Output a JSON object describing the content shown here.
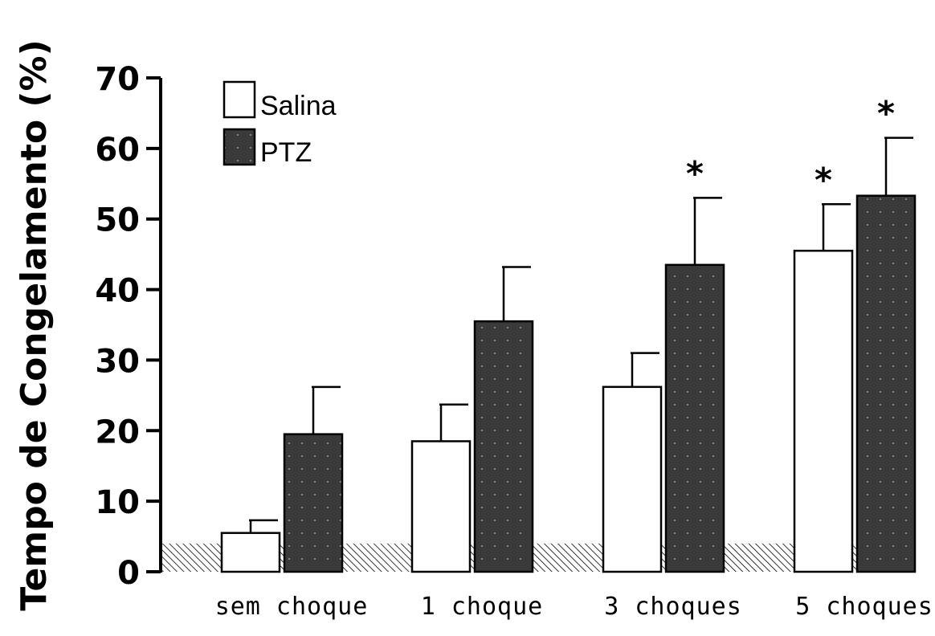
{
  "chart_data": {
    "type": "bar",
    "title": "",
    "xlabel": "",
    "ylabel": "Tempo de Congelamento (%)",
    "ylim": [
      0,
      70
    ],
    "yticks": [
      0,
      10,
      20,
      30,
      40,
      50,
      60,
      70
    ],
    "categories": [
      "sem choque",
      "1 choque",
      "3 choques",
      "5 choques"
    ],
    "baseline_band": {
      "from": 0,
      "to": 4,
      "pattern": "diagonal-hatch"
    },
    "legend": {
      "position": "top-left"
    },
    "series": [
      {
        "name": "Salina",
        "fill": "#ffffff",
        "values": [
          5.5,
          18.5,
          26.2,
          45.5
        ],
        "errors": [
          1.8,
          5.2,
          4.8,
          6.6
        ],
        "significance": [
          "",
          "",
          "",
          "*"
        ]
      },
      {
        "name": "PTZ",
        "fill": "#3a3a3a",
        "values": [
          19.5,
          35.5,
          43.5,
          53.3
        ],
        "errors": [
          6.7,
          7.7,
          9.5,
          8.2
        ],
        "significance": [
          "",
          "",
          "*",
          "*"
        ]
      }
    ]
  }
}
